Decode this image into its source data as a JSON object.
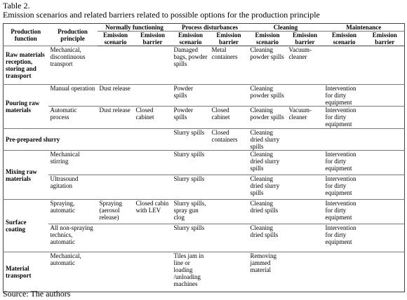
{
  "caption": {
    "label": "Table 2.",
    "title": "Emission scenarios and related barriers related to possible options for the production principle"
  },
  "table": {
    "header": {
      "function": "Production function",
      "principle": "Production principle",
      "groups": [
        {
          "name": "Normally functioning",
          "columns": [
            "Emission scenario",
            "Emission barrier"
          ]
        },
        {
          "name": "Process disturbances",
          "columns": [
            "Emission scenario",
            "Emission barrier"
          ]
        },
        {
          "name": "Cleaning",
          "columns": [
            "Emission scenario",
            "Emission barrier"
          ]
        },
        {
          "name": "Maintenance",
          "columns": [
            "Emission scenario",
            "Emission barrier"
          ]
        }
      ]
    },
    "rows": [
      {
        "function": "Raw materials reception, storing and transport",
        "subrows": [
          [
            "Mechanical, discontinuous transport",
            null,
            null,
            "Damaged bags, powder spills",
            "Metal containers",
            "Cleaning powder spills",
            "Vacuum-cleaner",
            null,
            null
          ]
        ]
      },
      {
        "function": "Pouring raw materials",
        "subrows": [
          [
            "Manual operation",
            "Dust release",
            null,
            "Powder spills",
            null,
            "Cleaning powder spills",
            null,
            "Intervention for dirty equipment",
            null
          ],
          [
            "Automatic process",
            "Dust release",
            "Closed cabinet",
            "Powder spills",
            "Closed cabinet",
            "Cleaning powder spills",
            "Vacuum-cleaner",
            "Intervention for dirty equipment",
            null
          ]
        ]
      },
      {
        "function": "Pre-prepared slurry",
        "subrows": [
          [
            null,
            null,
            null,
            "Slurry spills",
            "Closed containers",
            "Cleaning dried slurry spills",
            null,
            null,
            null
          ]
        ]
      },
      {
        "function": "Mixing raw materials",
        "subrows": [
          [
            "Mechanical stirring",
            null,
            null,
            "Slurry spills",
            null,
            "Cleaning dried slurry spills",
            null,
            "Intervention for dirty equipment",
            null
          ],
          [
            "Ultrasound agitation",
            null,
            null,
            "Slurry spills",
            null,
            "Cleaning dried slurry spills",
            null,
            "Intervention for dirty equipment",
            null
          ]
        ]
      },
      {
        "function": "Surface coating",
        "subrows": [
          [
            "Spraying, automatic",
            "Spraying (aerosol release)",
            "Closed cabin with LEV",
            "Slurry spills, spray gun clog",
            null,
            "Cleaning dried spills",
            null,
            "Intervention for dirty equipment",
            null
          ],
          [
            "All non-spraying technics, automatic",
            null,
            null,
            "Slurry spills",
            null,
            "Cleaning dried spills",
            null,
            "Intervention for dirty equipment",
            null
          ]
        ]
      },
      {
        "function": "Material transport",
        "subrows": [
          [
            "Mechanical, automatic",
            null,
            null,
            "Tiles jam in line or loading /unloading machines",
            null,
            "Removing jammed material",
            null,
            null,
            null
          ]
        ]
      }
    ]
  },
  "source": "Source: The authors"
}
